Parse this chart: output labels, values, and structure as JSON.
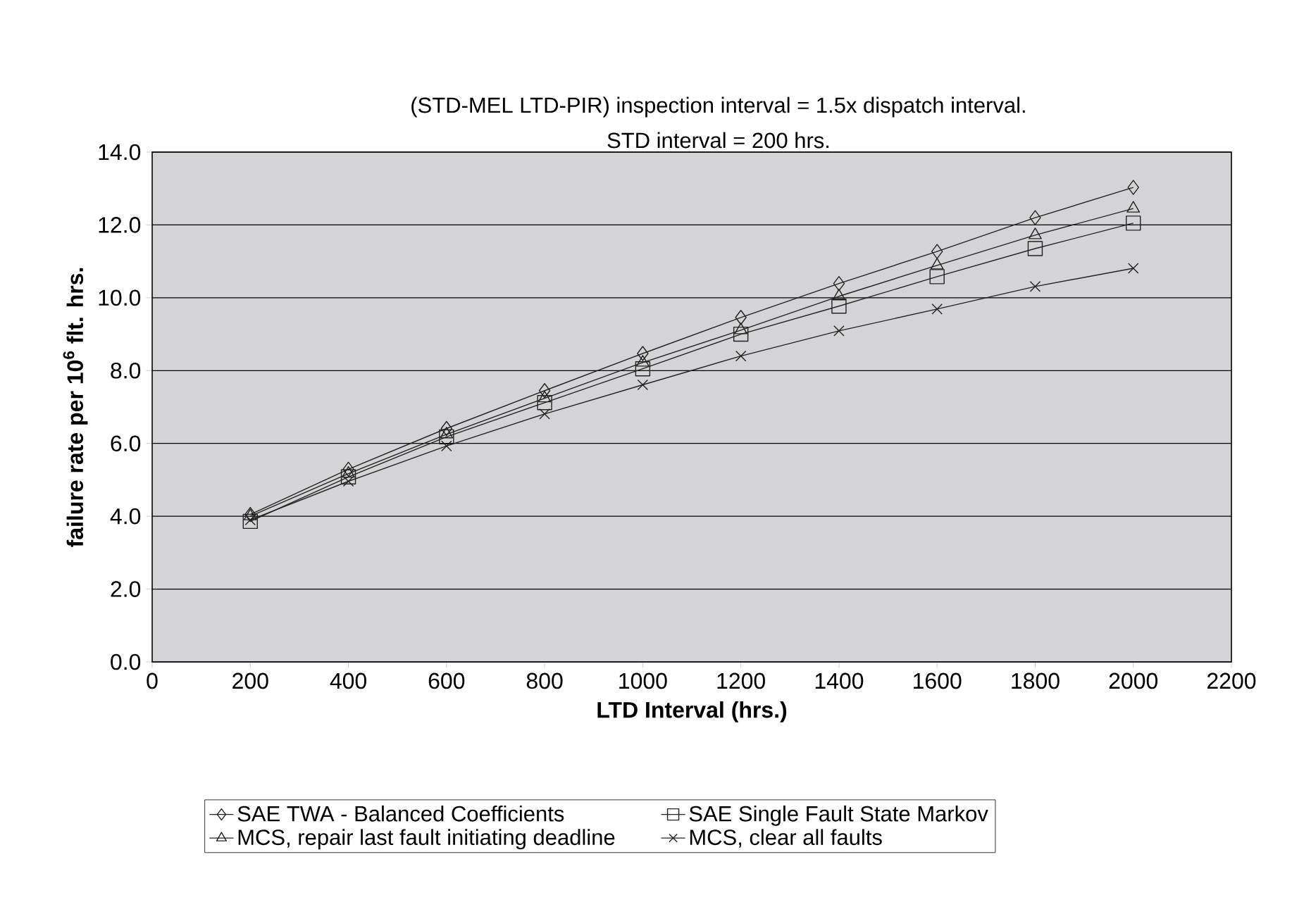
{
  "chart_data": {
    "type": "line",
    "title": "(STD-MEL LTD-PIR) inspection interval = 1.5x dispatch interval.",
    "subtitle": "STD interval = 200 hrs.",
    "xlabel": "LTD Interval (hrs.)",
    "ylabel": "failure rate per 10$^{6}$ flt. hrs.",
    "x": [
      200,
      400,
      600,
      800,
      1000,
      1200,
      1400,
      1600,
      1800,
      2000
    ],
    "series": [
      {
        "name": "SAE TWA - Balanced Coefficients",
        "color": "#222222",
        "marker": "diamond",
        "values": [
          4.05,
          5.29,
          6.41,
          7.45,
          8.47,
          9.46,
          10.39,
          11.27,
          12.2,
          13.03
        ]
      },
      {
        "name": "SAE Single Fault State Markov",
        "color": "#222222",
        "marker": "square",
        "values": [
          3.86,
          5.08,
          6.18,
          7.12,
          8.05,
          9.0,
          9.77,
          10.58,
          11.35,
          12.05
        ]
      },
      {
        "name": "MCS, repair last fault initiating deadline",
        "color": "#222222",
        "marker": "triangle",
        "values": [
          4.0,
          5.17,
          6.25,
          7.24,
          8.22,
          9.11,
          10.04,
          10.89,
          11.72,
          12.45
        ]
      },
      {
        "name": "MCS, clear all faults",
        "color": "#222222",
        "marker": "cross",
        "values": [
          3.9,
          4.96,
          5.93,
          6.81,
          7.61,
          8.4,
          9.09,
          9.69,
          10.31,
          10.81
        ]
      }
    ],
    "xlim": [
      0,
      2200
    ],
    "xticks": [
      0,
      200,
      400,
      600,
      800,
      1000,
      1200,
      1400,
      1600,
      1800,
      2000,
      2200
    ],
    "ylim": [
      0,
      14
    ],
    "yticks": [
      {
        "value": 0,
        "label": "0.0"
      },
      {
        "value": 2,
        "label": "2.0"
      },
      {
        "value": 4,
        "label": "4.0"
      },
      {
        "value": 6,
        "label": "6.0"
      },
      {
        "value": 8,
        "label": "8.0"
      },
      {
        "value": 10,
        "label": "10.0"
      },
      {
        "value": 12,
        "label": "12.0"
      },
      {
        "value": 14,
        "label": "14.0"
      }
    ],
    "grid": "y",
    "legend": "bottom",
    "line_style": "solid"
  }
}
